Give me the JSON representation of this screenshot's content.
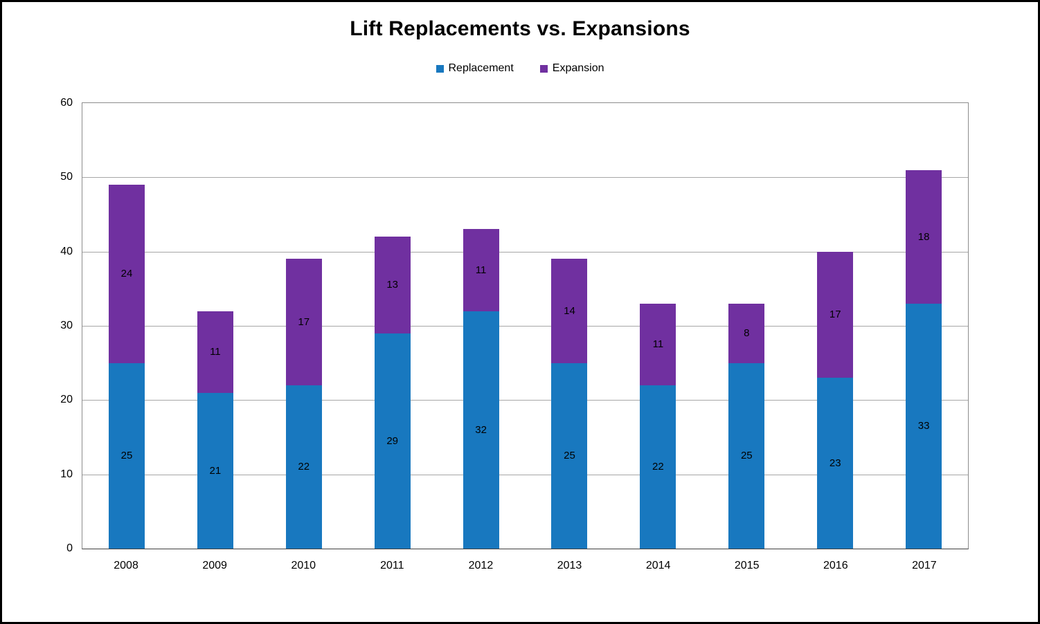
{
  "chart_data": {
    "type": "bar",
    "stacked": true,
    "title": "Lift Replacements vs. Expansions",
    "categories": [
      "2008",
      "2009",
      "2010",
      "2011",
      "2012",
      "2013",
      "2014",
      "2015",
      "2016",
      "2017"
    ],
    "series": [
      {
        "name": "Replacement",
        "color": "#1878BF",
        "values": [
          25,
          21,
          22,
          29,
          32,
          25,
          22,
          25,
          23,
          33
        ]
      },
      {
        "name": "Expansion",
        "color": "#7030A0",
        "values": [
          24,
          11,
          17,
          13,
          11,
          14,
          11,
          8,
          17,
          18
        ]
      }
    ],
    "totals": [
      49,
      32,
      39,
      42,
      43,
      39,
      33,
      33,
      40,
      51
    ],
    "ylim": [
      0,
      60
    ],
    "yticks": [
      0,
      10,
      20,
      30,
      40,
      50,
      60
    ],
    "grid": true,
    "legend_position": "top",
    "data_labels": true,
    "xlabel": "",
    "ylabel": ""
  },
  "colors": {
    "replacement": "#1878BF",
    "expansion": "#7030A0",
    "gridline": "#a6a6a6",
    "frame": "#000000",
    "text": "#000000"
  }
}
